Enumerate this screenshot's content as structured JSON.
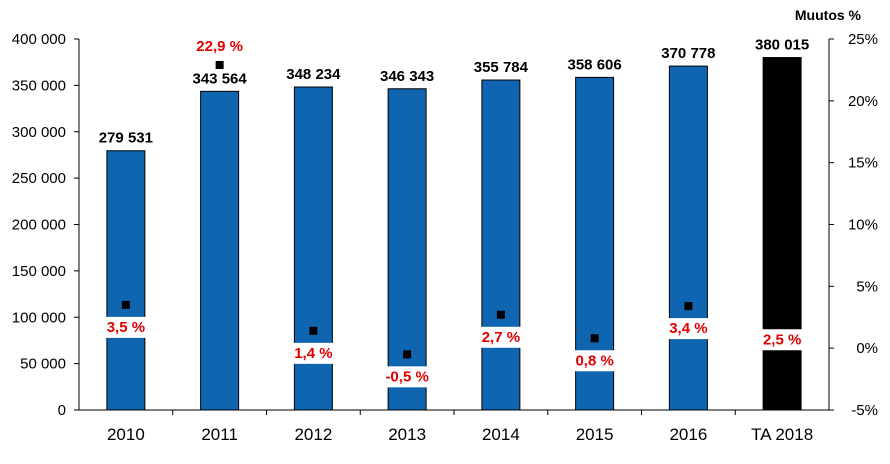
{
  "chart_data": {
    "type": "bar",
    "categories": [
      "2010",
      "2011",
      "2012",
      "2013",
      "2014",
      "2015",
      "2016",
      "TA 2018"
    ],
    "series": [
      {
        "values": [
          279531,
          343564,
          348234,
          346343,
          355784,
          358606,
          370778,
          380015
        ],
        "value_labels": [
          "279 531",
          "343 564",
          "348 234",
          "346 343",
          "355 784",
          "358 606",
          "370 778",
          "380 015"
        ],
        "colors": [
          "#0f65b0",
          "#0f65b0",
          "#0f65b0",
          "#0f65b0",
          "#0f65b0",
          "#0f65b0",
          "#0f65b0",
          "#000000"
        ]
      },
      {
        "type": "scatter",
        "axis": "right",
        "values": [
          3.5,
          22.9,
          1.4,
          -0.5,
          2.7,
          0.8,
          3.4,
          2.5
        ],
        "value_labels": [
          "3,5 %",
          "22,9 %",
          "1,4 %",
          "-0,5 %",
          "2,7 %",
          "0,8 %",
          "3,4 %",
          "2,5 %"
        ],
        "label_color": "#e00000",
        "marker_color": "#000000"
      }
    ],
    "ylim": [
      0,
      400000
    ],
    "yticks": [
      "0",
      "50 000",
      "100 000",
      "150 000",
      "200 000",
      "250 000",
      "300 000",
      "350 000",
      "400 000"
    ],
    "y2label": "Muutos %",
    "y2lim": [
      -5,
      25
    ],
    "y2ticks": [
      "-5%",
      "0%",
      "5%",
      "10%",
      "15%",
      "20%",
      "25%"
    ],
    "grid": false,
    "legend": false
  }
}
